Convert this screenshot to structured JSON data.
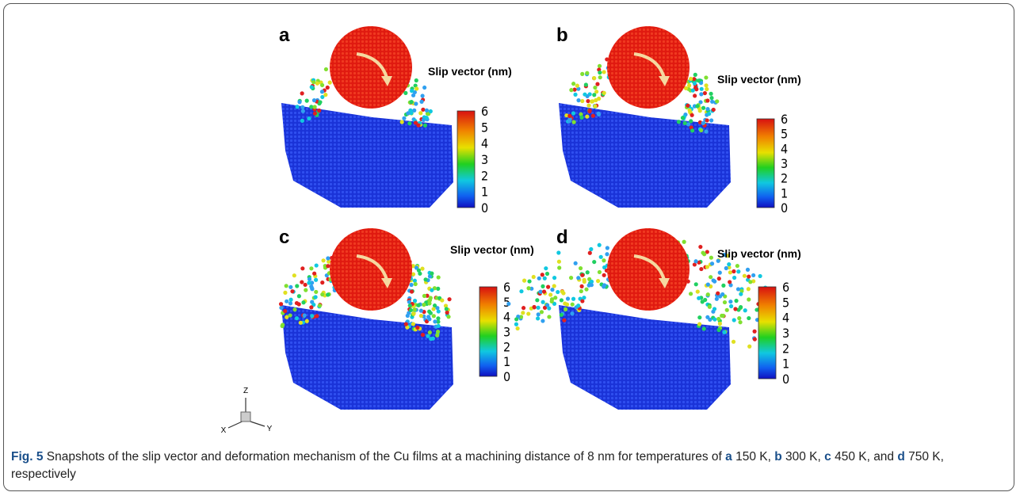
{
  "panels": [
    {
      "label": "a",
      "colorbar": {
        "title": "Slip vector (nm)",
        "ticks": [
          "6",
          "5",
          "4",
          "3",
          "2",
          "1",
          "0"
        ]
      }
    },
    {
      "label": "b",
      "colorbar": {
        "title": "Slip vector (nm)",
        "ticks": [
          "6",
          "5",
          "4",
          "3",
          "2",
          "1",
          "0"
        ]
      }
    },
    {
      "label": "c",
      "colorbar": {
        "title": "Slip vector (nm)",
        "ticks": [
          "6",
          "5",
          "4",
          "3",
          "2",
          "1",
          "0"
        ]
      }
    },
    {
      "label": "d",
      "colorbar": {
        "title": "Slip vector (nm)",
        "ticks": [
          "6",
          "5",
          "4",
          "3",
          "2",
          "1",
          "0"
        ]
      }
    }
  ],
  "axes": {
    "z": "Z",
    "x": "X",
    "y": "Y"
  },
  "caption": [
    {
      "text": "Fig. 5",
      "bold": true
    },
    {
      "text": " Snapshots of the slip vector and deformation mechanism of the Cu films at a machining distance of 8 nm for temperatures of ",
      "bold": false
    },
    {
      "text": "a",
      "bold": true
    },
    {
      "text": " 150 K, ",
      "bold": false
    },
    {
      "text": "b",
      "bold": true
    },
    {
      "text": " 300 K, ",
      "bold": false
    },
    {
      "text": "c",
      "bold": true
    },
    {
      "text": " 450 K, and ",
      "bold": false
    },
    {
      "text": "d",
      "bold": true
    },
    {
      "text": " 750 K, respectively",
      "bold": false
    }
  ]
}
